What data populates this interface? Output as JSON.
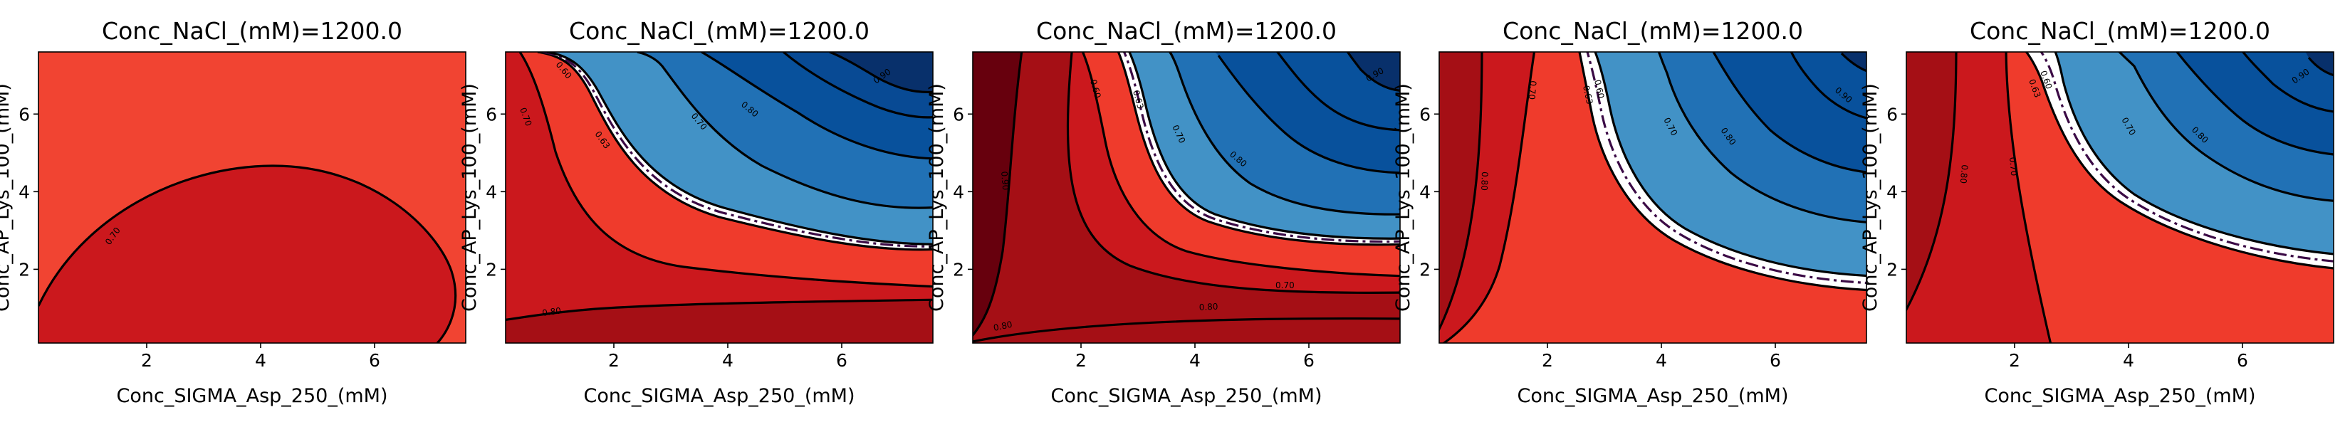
{
  "chart_data": [
    {
      "type": "contour",
      "title": "Conc_NaCl_(mM)=1200.0",
      "xlabel": "Conc_SIGMA_Asp_250_(mM)",
      "ylabel": "Conc_AP_Lys_100_(mM)",
      "xlim": [
        0.1,
        7.6
      ],
      "ylim": [
        0.1,
        7.6
      ],
      "xticks": [
        "2",
        "4",
        "6"
      ],
      "yticks": [
        "2",
        "4",
        "6"
      ],
      "level_labels": [
        "0.70"
      ],
      "fill_colors": [
        "#f14432",
        "#cb181d"
      ]
    },
    {
      "type": "contour",
      "title": "Conc_NaCl_(mM)=1200.0",
      "xlabel": "Conc_SIGMA_Asp_250_(mM)",
      "ylabel": "Conc_AP_Lys_100_(mM)",
      "xlim": [
        0.1,
        7.6
      ],
      "ylim": [
        0.1,
        7.6
      ],
      "xticks": [
        "2",
        "4",
        "6"
      ],
      "yticks": [
        "2",
        "4",
        "6"
      ],
      "level_labels": [
        "0.80",
        "0.70",
        "0.60",
        "0.63",
        "0.70",
        "0.80",
        "0.90"
      ],
      "fill_colors": [
        "#a50f15",
        "#cb181d",
        "#ef3b2c",
        "#ffffff",
        "#4292c6",
        "#2171b5",
        "#08519c",
        "#08306b"
      ]
    },
    {
      "type": "contour",
      "title": "Conc_NaCl_(mM)=1200.0",
      "xlabel": "Conc_SIGMA_Asp_250_(mM)",
      "ylabel": "Conc_AP_Lys_100_(mM)",
      "xlim": [
        0.1,
        7.6
      ],
      "ylim": [
        0.1,
        7.6
      ],
      "xticks": [
        "2",
        "4",
        "6"
      ],
      "yticks": [
        "2",
        "4",
        "6"
      ],
      "level_labels": [
        "0.80",
        "0.90",
        "0.80",
        "0.70",
        "0.60",
        "0.63",
        "0.70",
        "0.80",
        "0.90"
      ],
      "fill_colors": [
        "#67000d",
        "#a50f15",
        "#cb181d",
        "#ef3b2c",
        "#ffffff",
        "#4292c6",
        "#2171b5",
        "#08519c",
        "#08306b"
      ]
    },
    {
      "type": "contour",
      "title": "Conc_NaCl_(mM)=1200.0",
      "xlabel": "Conc_SIGMA_Asp_250_(mM)",
      "ylabel": "Conc_AP_Lys_100_(mM)",
      "xlim": [
        0.1,
        7.6
      ],
      "ylim": [
        0.1,
        7.6
      ],
      "xticks": [
        "2",
        "4",
        "6"
      ],
      "yticks": [
        "2",
        "4",
        "6"
      ],
      "level_labels": [
        "0.80",
        "0.70",
        "0.63",
        "0.60",
        "0.70",
        "0.80",
        "0.90"
      ],
      "fill_colors": [
        "#a50f15",
        "#cb181d",
        "#ef3b2c",
        "#ffffff",
        "#4292c6",
        "#2171b5",
        "#08519c",
        "#08306b"
      ]
    },
    {
      "type": "contour",
      "title": "Conc_NaCl_(mM)=1200.0",
      "xlabel": "Conc_SIGMA_Asp_250_(mM)",
      "ylabel": "Conc_AP_Lys_100_(mM)",
      "xlim": [
        0.1,
        7.6
      ],
      "ylim": [
        0.1,
        7.6
      ],
      "xticks": [
        "2",
        "4",
        "6"
      ],
      "yticks": [
        "2",
        "4",
        "6"
      ],
      "level_labels": [
        "0.80",
        "0.70",
        "0.63",
        "0.60",
        "0.70",
        "0.80",
        "0.90"
      ],
      "fill_colors": [
        "#a50f15",
        "#cb181d",
        "#ef3b2c",
        "#ffffff",
        "#4292c6",
        "#2171b5",
        "#08519c",
        "#08306b"
      ]
    }
  ]
}
